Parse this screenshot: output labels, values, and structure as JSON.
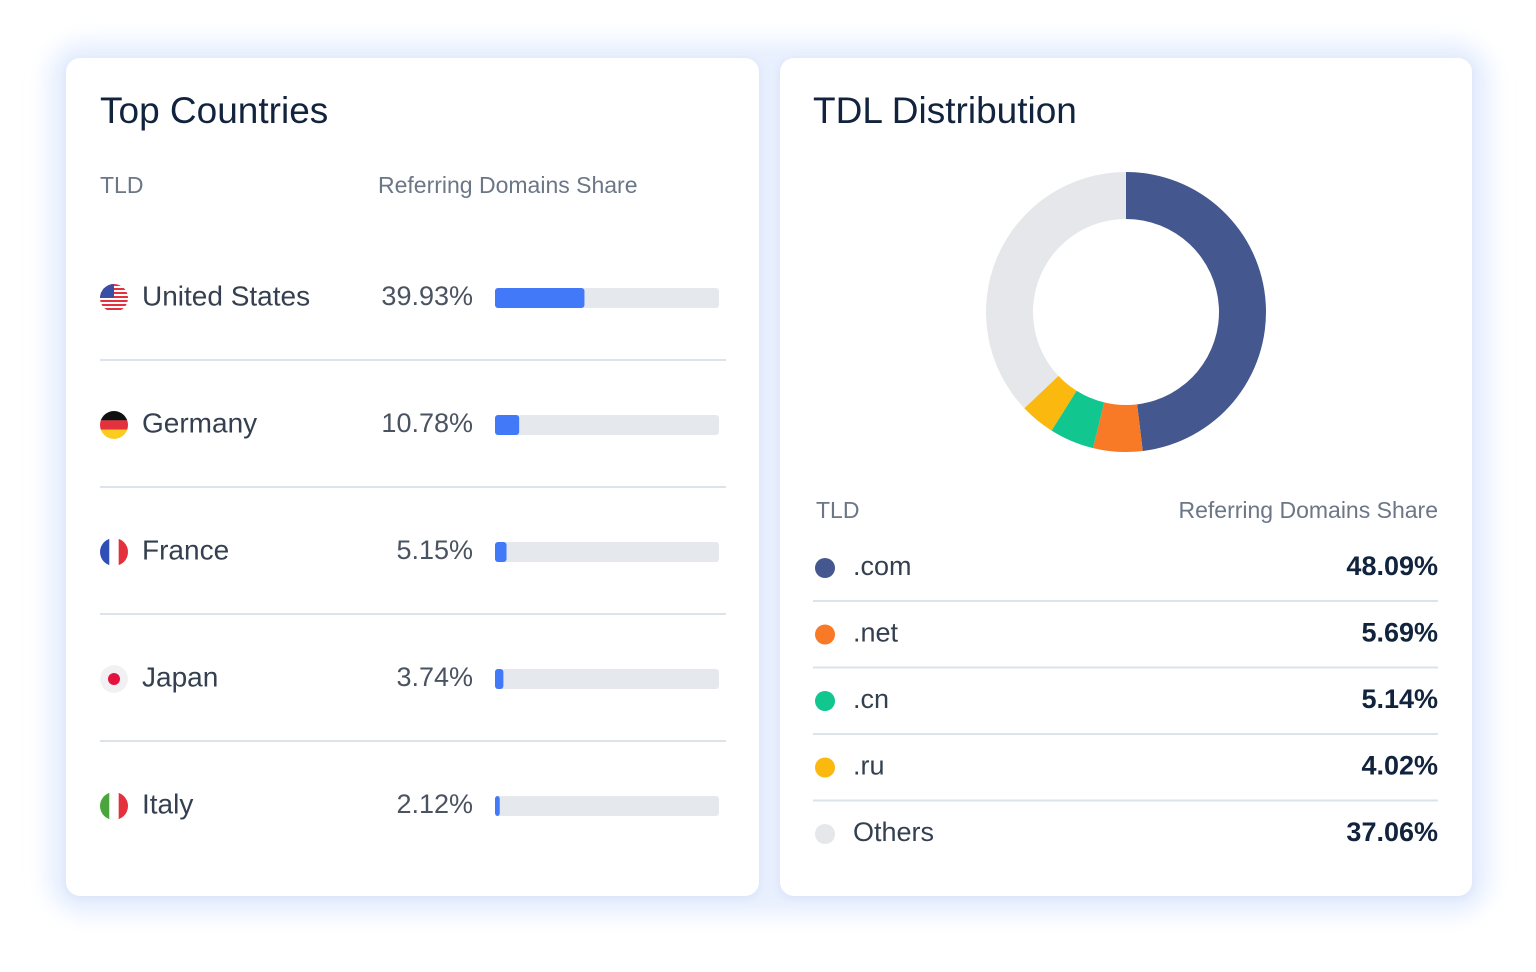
{
  "chart_data": [
    {
      "type": "bar",
      "title": "Top Countries",
      "column_headers": [
        "TLD",
        "Referring Domains Share"
      ],
      "categories": [
        "United States",
        "Germany",
        "France",
        "Japan",
        "Italy"
      ],
      "values": [
        39.93,
        10.78,
        5.15,
        3.74,
        2.12
      ],
      "value_labels": [
        "39.93%",
        "10.78%",
        "5.15%",
        "3.74%",
        "2.12%"
      ],
      "xlim": [
        0,
        100
      ],
      "color": "#4279f8"
    },
    {
      "type": "pie",
      "title": "TDL Distribution",
      "column_headers": [
        "TLD",
        "Referring Domains Share"
      ],
      "categories": [
        ".com",
        ".net",
        ".cn",
        ".ru",
        "Others"
      ],
      "values": [
        48.09,
        5.69,
        5.14,
        4.02,
        37.06
      ],
      "value_labels": [
        "48.09%",
        "5.69%",
        "5.14%",
        "4.02%",
        "37.06%"
      ],
      "colors": [
        "#44578f",
        "#f97a26",
        "#11c68f",
        "#fbb80f",
        "#e5e7ea"
      ]
    }
  ]
}
